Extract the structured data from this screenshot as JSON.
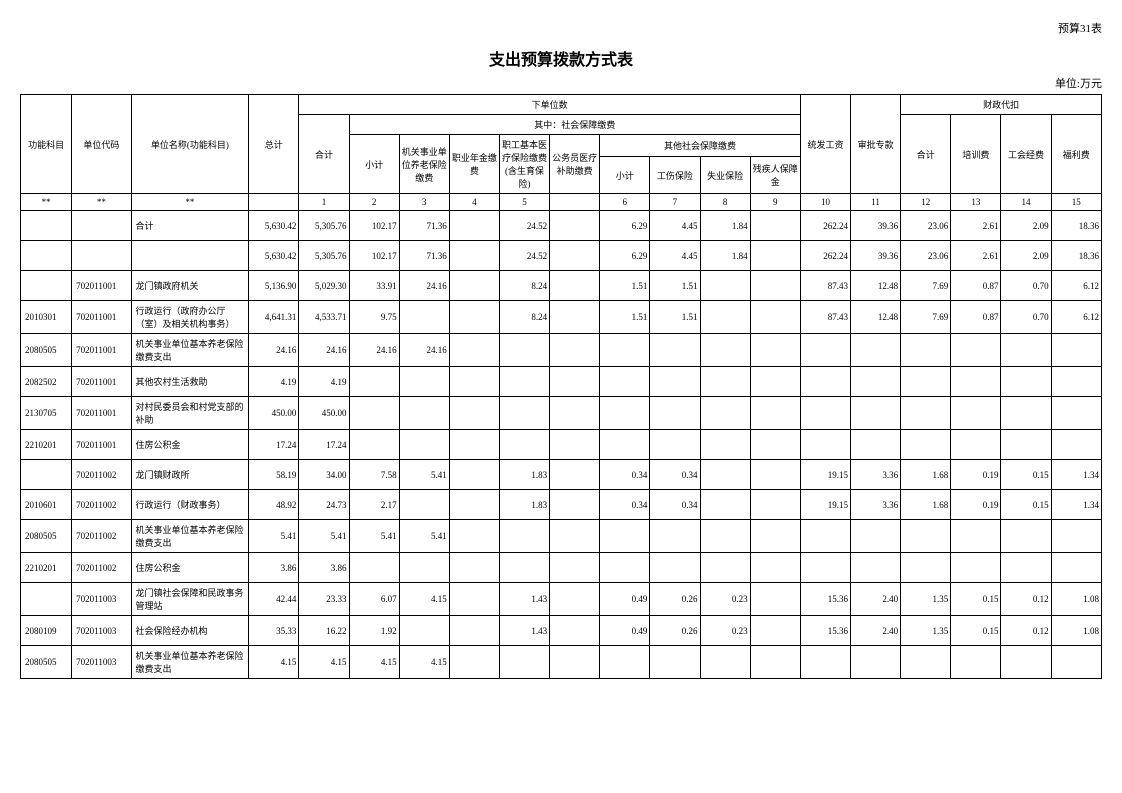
{
  "header_right": "预算31表",
  "title": "支出预算拨款方式表",
  "unit_label": "单位:万元",
  "headers": {
    "func_code": "功能科目",
    "unit_code": "单位代码",
    "unit_name": "单位名称(功能科目)",
    "total": "总计",
    "sub_units": "下单位数",
    "heji": "合计",
    "social_ins": "其中：社会保障缴费",
    "xiaoji": "小计",
    "pension": "机关事业单位养老保险缴费",
    "annuity": "职业年金缴费",
    "medical": "职工基本医疗保险缴费(含生育保险)",
    "civil_med": "公务员医疗补助缴费",
    "other_social": "其他社会保障缴费",
    "injury": "工伤保险",
    "unemploy": "失业保险",
    "disability": "残疾人保障金",
    "salary": "统发工资",
    "audit": "审批专款",
    "fiscal": "财政代扣",
    "training": "培训费",
    "union": "工会经费",
    "welfare": "福利费"
  },
  "col_nums": [
    "**",
    "**",
    "**",
    "",
    "1",
    "2",
    "3",
    "4",
    "5",
    "",
    "6",
    "7",
    "8",
    "9",
    "10",
    "11",
    "12",
    "13",
    "14",
    "15"
  ],
  "rows": [
    {
      "func": "",
      "unit": "",
      "name": "合计",
      "name_align": "left",
      "total": "5,630.42",
      "c1": "5,305.76",
      "c2": "102.17",
      "c3": "71.36",
      "c4": "",
      "c5": "24.52",
      "c5b": "",
      "c6": "6.29",
      "c7": "4.45",
      "c8": "1.84",
      "c9": "",
      "c10": "262.24",
      "c11": "39.36",
      "c12": "23.06",
      "c13": "2.61",
      "c14": "2.09",
      "c15": "18.36"
    },
    {
      "func": "",
      "unit": "",
      "name": "",
      "total": "5,630.42",
      "c1": "5,305.76",
      "c2": "102.17",
      "c3": "71.36",
      "c4": "",
      "c5": "24.52",
      "c5b": "",
      "c6": "6.29",
      "c7": "4.45",
      "c8": "1.84",
      "c9": "",
      "c10": "262.24",
      "c11": "39.36",
      "c12": "23.06",
      "c13": "2.61",
      "c14": "2.09",
      "c15": "18.36"
    },
    {
      "func": "",
      "unit": "702011001",
      "name": "龙门镇政府机关",
      "name_align": "left",
      "total": "5,136.90",
      "c1": "5,029.30",
      "c2": "33.91",
      "c3": "24.16",
      "c4": "",
      "c5": "8.24",
      "c5b": "",
      "c6": "1.51",
      "c7": "1.51",
      "c8": "",
      "c9": "",
      "c10": "87.43",
      "c11": "12.48",
      "c12": "7.69",
      "c13": "0.87",
      "c14": "0.70",
      "c15": "6.12"
    },
    {
      "func": "2010301",
      "unit": "702011001",
      "name": "  行政运行（政府办公厅（室）及相关机构事务）",
      "name_align": "left",
      "total": "4,641.31",
      "c1": "4,533.71",
      "c2": "9.75",
      "c3": "",
      "c4": "",
      "c5": "8.24",
      "c5b": "",
      "c6": "1.51",
      "c7": "1.51",
      "c8": "",
      "c9": "",
      "c10": "87.43",
      "c11": "12.48",
      "c12": "7.69",
      "c13": "0.87",
      "c14": "0.70",
      "c15": "6.12"
    },
    {
      "func": "2080505",
      "unit": "702011001",
      "name": "  机关事业单位基本养老保险缴费支出",
      "name_align": "left",
      "total": "24.16",
      "c1": "24.16",
      "c2": "24.16",
      "c3": "24.16",
      "c4": "",
      "c5": "",
      "c5b": "",
      "c6": "",
      "c7": "",
      "c8": "",
      "c9": "",
      "c10": "",
      "c11": "",
      "c12": "",
      "c13": "",
      "c14": "",
      "c15": ""
    },
    {
      "func": "2082502",
      "unit": "702011001",
      "name": "  其他农村生活救助",
      "name_align": "left",
      "total": "4.19",
      "c1": "4.19",
      "c2": "",
      "c3": "",
      "c4": "",
      "c5": "",
      "c5b": "",
      "c6": "",
      "c7": "",
      "c8": "",
      "c9": "",
      "c10": "",
      "c11": "",
      "c12": "",
      "c13": "",
      "c14": "",
      "c15": ""
    },
    {
      "func": "2130705",
      "unit": "702011001",
      "name": "  对村民委员会和村党支部的补助",
      "name_align": "left",
      "total": "450.00",
      "c1": "450.00",
      "c2": "",
      "c3": "",
      "c4": "",
      "c5": "",
      "c5b": "",
      "c6": "",
      "c7": "",
      "c8": "",
      "c9": "",
      "c10": "",
      "c11": "",
      "c12": "",
      "c13": "",
      "c14": "",
      "c15": ""
    },
    {
      "func": "2210201",
      "unit": "702011001",
      "name": "  住房公积金",
      "name_align": "left",
      "total": "17.24",
      "c1": "17.24",
      "c2": "",
      "c3": "",
      "c4": "",
      "c5": "",
      "c5b": "",
      "c6": "",
      "c7": "",
      "c8": "",
      "c9": "",
      "c10": "",
      "c11": "",
      "c12": "",
      "c13": "",
      "c14": "",
      "c15": ""
    },
    {
      "func": "",
      "unit": "702011002",
      "name": "龙门镇财政所",
      "name_align": "left",
      "total": "58.19",
      "c1": "34.00",
      "c2": "7.58",
      "c3": "5.41",
      "c4": "",
      "c5": "1.83",
      "c5b": "",
      "c6": "0.34",
      "c7": "0.34",
      "c8": "",
      "c9": "",
      "c10": "19.15",
      "c11": "3.36",
      "c12": "1.68",
      "c13": "0.19",
      "c14": "0.15",
      "c15": "1.34"
    },
    {
      "func": "2010601",
      "unit": "702011002",
      "name": "  行政运行（财政事务）",
      "name_align": "left",
      "total": "48.92",
      "c1": "24.73",
      "c2": "2.17",
      "c3": "",
      "c4": "",
      "c5": "1.83",
      "c5b": "",
      "c6": "0.34",
      "c7": "0.34",
      "c8": "",
      "c9": "",
      "c10": "19.15",
      "c11": "3.36",
      "c12": "1.68",
      "c13": "0.19",
      "c14": "0.15",
      "c15": "1.34"
    },
    {
      "func": "2080505",
      "unit": "702011002",
      "name": "  机关事业单位基本养老保险缴费支出",
      "name_align": "left",
      "total": "5.41",
      "c1": "5.41",
      "c2": "5.41",
      "c3": "5.41",
      "c4": "",
      "c5": "",
      "c5b": "",
      "c6": "",
      "c7": "",
      "c8": "",
      "c9": "",
      "c10": "",
      "c11": "",
      "c12": "",
      "c13": "",
      "c14": "",
      "c15": ""
    },
    {
      "func": "2210201",
      "unit": "702011002",
      "name": "  住房公积金",
      "name_align": "left",
      "total": "3.86",
      "c1": "3.86",
      "c2": "",
      "c3": "",
      "c4": "",
      "c5": "",
      "c5b": "",
      "c6": "",
      "c7": "",
      "c8": "",
      "c9": "",
      "c10": "",
      "c11": "",
      "c12": "",
      "c13": "",
      "c14": "",
      "c15": ""
    },
    {
      "func": "",
      "unit": "702011003",
      "name": "龙门镇社会保障和民政事务管理站",
      "name_align": "left",
      "total": "42.44",
      "c1": "23.33",
      "c2": "6.07",
      "c3": "4.15",
      "c4": "",
      "c5": "1.43",
      "c5b": "",
      "c6": "0.49",
      "c7": "0.26",
      "c8": "0.23",
      "c9": "",
      "c10": "15.36",
      "c11": "2.40",
      "c12": "1.35",
      "c13": "0.15",
      "c14": "0.12",
      "c15": "1.08"
    },
    {
      "func": "2080109",
      "unit": "702011003",
      "name": "  社会保险经办机构",
      "name_align": "left",
      "total": "35.33",
      "c1": "16.22",
      "c2": "1.92",
      "c3": "",
      "c4": "",
      "c5": "1.43",
      "c5b": "",
      "c6": "0.49",
      "c7": "0.26",
      "c8": "0.23",
      "c9": "",
      "c10": "15.36",
      "c11": "2.40",
      "c12": "1.35",
      "c13": "0.15",
      "c14": "0.12",
      "c15": "1.08"
    },
    {
      "func": "2080505",
      "unit": "702011003",
      "name": "  机关事业单位基本养老保险缴费支出",
      "name_align": "left",
      "total": "4.15",
      "c1": "4.15",
      "c2": "4.15",
      "c3": "4.15",
      "c4": "",
      "c5": "",
      "c5b": "",
      "c6": "",
      "c7": "",
      "c8": "",
      "c9": "",
      "c10": "",
      "c11": "",
      "c12": "",
      "c13": "",
      "c14": "",
      "c15": ""
    }
  ]
}
